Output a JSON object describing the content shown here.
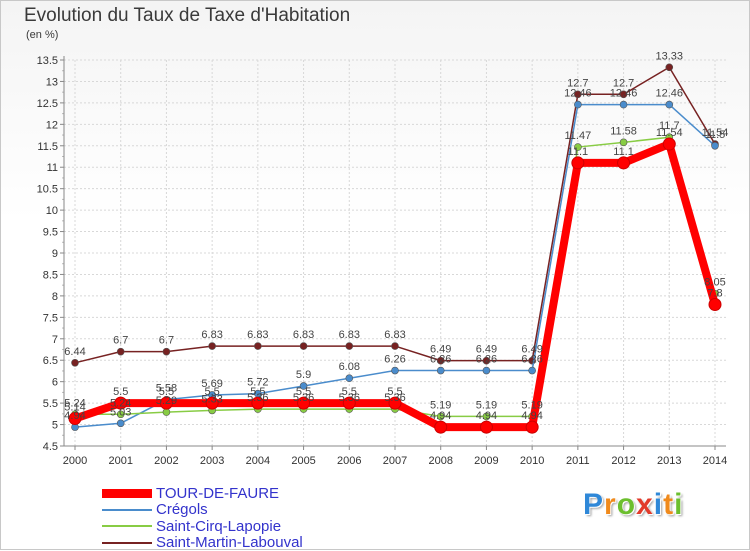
{
  "chart_data": {
    "type": "line",
    "title": "Evolution du Taux de Taxe d'Habitation",
    "ylabel": "(en %)",
    "xlabel": "",
    "ylim": [
      4.5,
      13.5
    ],
    "yticks": [
      "4.5",
      "5",
      "5.5",
      "6",
      "6.5",
      "7",
      "7.5",
      "8",
      "8.5",
      "9",
      "9.5",
      "10",
      "10.5",
      "11",
      "11.5",
      "12",
      "12.5",
      "13",
      "13.5"
    ],
    "grid": true,
    "legend_position": "bottom-left",
    "x": [
      "2000",
      "2001",
      "2002",
      "2003",
      "2004",
      "2005",
      "2006",
      "2007",
      "2008",
      "2009",
      "2010",
      "2011",
      "2012",
      "2013",
      "2014"
    ],
    "series": [
      {
        "name": "TOUR-DE-FAURE",
        "color": "#ff0000",
        "values": [
          5.14,
          5.5,
          5.5,
          5.5,
          5.5,
          5.5,
          5.5,
          5.5,
          4.94,
          4.94,
          4.94,
          11.1,
          11.1,
          11.54,
          7.8
        ],
        "labels": [
          "5.14",
          "5.5",
          "5.5",
          "5.5",
          "5.5",
          "5.5",
          "5.5",
          "5.5",
          "4.94",
          "4.94",
          "4.94",
          "11.1",
          "11.1",
          "11.54",
          "7.8"
        ]
      },
      {
        "name": "Crégols",
        "color": "#4a8ccc",
        "values": [
          4.94,
          5.03,
          5.58,
          5.69,
          5.72,
          5.9,
          6.08,
          6.26,
          6.26,
          6.26,
          6.26,
          12.46,
          12.46,
          12.46,
          11.5
        ],
        "labels": [
          "4.94",
          "5.03",
          "5.58",
          "5.69",
          "5.72",
          "5.9",
          "6.08",
          "6.26",
          "6.26",
          "6.26",
          "6.26",
          "12.46",
          "12.46",
          "12.46",
          "11.5"
        ]
      },
      {
        "name": "Saint-Cirq-Lapopie",
        "color": "#88cc44",
        "values": [
          5.24,
          5.24,
          5.29,
          5.33,
          5.36,
          5.36,
          5.36,
          5.36,
          5.19,
          5.19,
          5.19,
          11.47,
          11.58,
          11.7,
          8.05
        ],
        "labels": [
          "5.24",
          "5.24",
          "5.29",
          "5.33",
          "5.36",
          "5.36",
          "5.36",
          "5.36",
          "5.19",
          "5.19",
          "5.19",
          "11.47",
          "11.58",
          "11.7",
          "8.05"
        ]
      },
      {
        "name": "Saint-Martin-Labouval",
        "color": "#772222",
        "values": [
          6.44,
          6.7,
          6.7,
          6.83,
          6.83,
          6.83,
          6.83,
          6.83,
          6.49,
          6.49,
          6.49,
          12.7,
          12.7,
          13.33,
          11.54
        ],
        "labels": [
          "6.44",
          "6.7",
          "6.7",
          "6.83",
          "6.83",
          "6.83",
          "6.83",
          "6.83",
          "6.49",
          "6.49",
          "6.49",
          "12.7",
          "12.7",
          "13.33",
          "11.54"
        ]
      }
    ]
  },
  "brand": {
    "letters": [
      "P",
      "r",
      "o",
      "x",
      "i",
      "t",
      "i"
    ],
    "colors": [
      "#2f88d8",
      "#f08a1c",
      "#6cbf2e",
      "#e23a2a",
      "#2f88d8",
      "#f08a1c",
      "#6cbf2e"
    ]
  }
}
